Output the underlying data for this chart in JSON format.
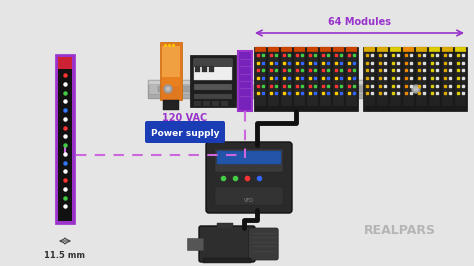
{
  "bg_color": "#e5e5e5",
  "realpars_text": "REALPARS",
  "realpars_color": "#b0b0b0",
  "purple": "#9933cc",
  "dashed_color": "#cc66dd",
  "blue_label_bg": "#1a3db5",
  "label_64modules": "64 Modules",
  "label_120vac": "120 VAC",
  "label_powersupply": "Power supply",
  "label_115mm": "11.5 mm",
  "slim_leds": [
    "#ff3333",
    "#ffffff",
    "#44cc44",
    "#ffffff",
    "#3377ff",
    "#ffffff",
    "#ff3333",
    "#ffffff",
    "#44cc44",
    "#ffffff",
    "#3377ff",
    "#ffffff",
    "#ff3333",
    "#ffffff",
    "#44cc44",
    "#ffffff"
  ]
}
